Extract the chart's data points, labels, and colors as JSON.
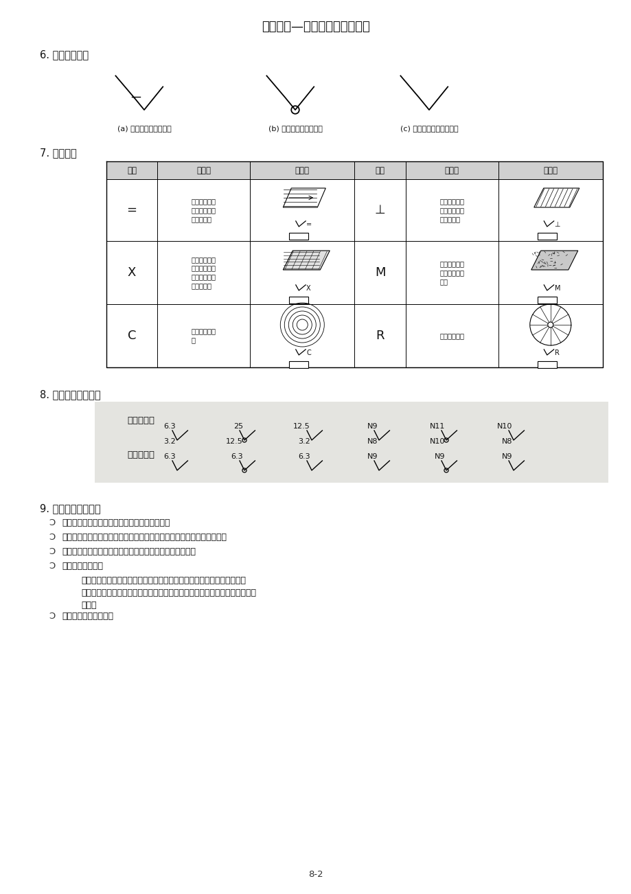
{
  "title": "機械製圖—表面符號及公差標註",
  "page_bg": "#f2f2ee",
  "section6_title": "6. 切削加工符號",
  "section6_captions": [
    "(a) 必須切削加工之表面",
    "(b) 不得切削加工之表面",
    "(c) 不規定切削加工之表面"
  ],
  "section7_title": "7. 刀痕方向",
  "table_header": [
    "符號",
    "說　明",
    "圖　例",
    "符號",
    "說　明",
    "圖　例"
  ],
  "row_syms1": [
    "=",
    "X",
    "C"
  ],
  "row_syms2": [
    "⊥",
    "M",
    "R"
  ],
  "row_descs1": [
    "刀痕之方向與\n其所指加工面\n之邊緣平行",
    "刀痕之方向與\n其所指加工面\n之邊緣成兩方\n向傾斜交叉",
    "刀痕成同心圓\n狀"
  ],
  "row_descs2": [
    "刀痕之方向與\n其所指加工面\n之邊緣垂直",
    "刀痕成多方向\n交叉或無一定\n方向",
    "刀痕成放射狀"
  ],
  "section8_title": "8. 粗糙度數値表示法",
  "max_limit_label": "最大極限法",
  "upper_lower_label": "上下極限法",
  "max_limit_items": [
    {
      "top": "6.3",
      "bot": "3.2",
      "circle": false
    },
    {
      "top": "25",
      "bot": "12.5",
      "circle": true
    },
    {
      "top": "12.5",
      "bot": "3.2",
      "circle": false
    },
    {
      "top": "N9",
      "bot": "N8",
      "circle": false
    },
    {
      "top": "N11",
      "bot": "N10",
      "circle": true
    },
    {
      "top": "N10",
      "bot": "N8",
      "circle": false
    }
  ],
  "upper_lower_items": [
    {
      "val": "6.3",
      "circle": false
    },
    {
      "val": "6.3",
      "circle": true
    },
    {
      "val": "6.3",
      "circle": false
    },
    {
      "val": "N9",
      "circle": false
    },
    {
      "val": "N9",
      "circle": true
    },
    {
      "val": "N9",
      "circle": false
    }
  ],
  "section9_title": "9. 表面符號標註原則",
  "section9_bullets": [
    "應標註於圖形輪廓線外，但也可標註在槽或孔內",
    "圓柱、圓錐或孔之表面加工符號應標註在任一邊或其延長線上，不可重複",
    "圓柱、圓錐或圓孔之表面符號以標註在非圓形視圖上為原則",
    "表面符號之省略：",
    "公用表面符號之標註法"
  ],
  "section9_indent": "表面符號完全相同之二個或二個以上之加工面，可用一個指線分出二個或\n二個以上之指示端，分別指在不同之加工面上，並將相同之表面符號標註在指\n線上。",
  "page_num": "8-2"
}
